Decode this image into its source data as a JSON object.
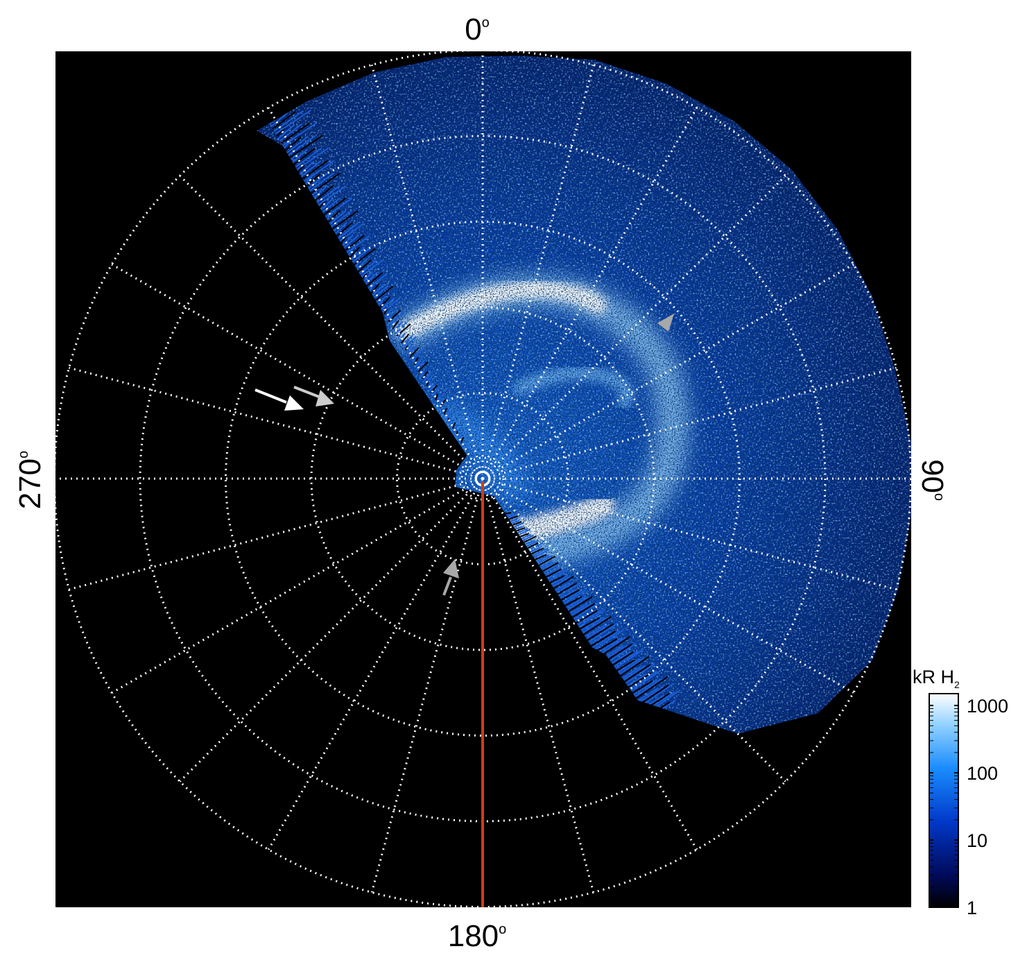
{
  "figure": {
    "projection": "polar",
    "angle_labels": {
      "top": "0",
      "right": "90",
      "bottom": "180",
      "left": "270",
      "degree_symbol": "o"
    },
    "colorbar": {
      "title_main": "kR H",
      "title_subscript": "2",
      "scale": "log",
      "ticks": [
        "1000",
        "100",
        "10",
        "1"
      ],
      "range": [
        1,
        1500
      ],
      "colors": [
        "#000000",
        "#000a5a",
        "#0038c8",
        "#1a8cff",
        "#8fd0ff",
        "#ffffff"
      ]
    },
    "meridian_line_color": "#d23c14",
    "grid_color": "#ffffff",
    "arrows": [
      {
        "color": "#ffffff"
      },
      {
        "color": "#cccccc"
      },
      {
        "color": "#a8a8a8"
      },
      {
        "color": "#a8a8a8"
      }
    ],
    "background": "#000000"
  }
}
